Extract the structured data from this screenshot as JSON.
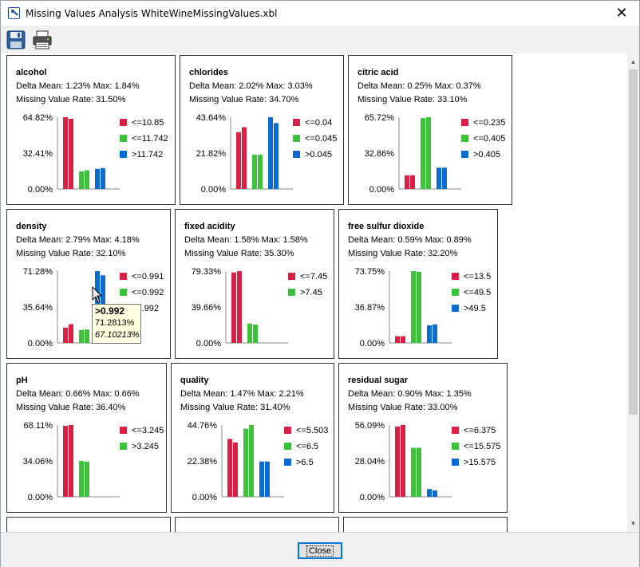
{
  "window": {
    "title": "Missing Values Analysis WhiteWineMissingValues.xbl",
    "close_glyph": "✕"
  },
  "toolbar": {
    "save_icon": "save-icon",
    "print_icon": "print-icon"
  },
  "footer": {
    "close_label": "Close"
  },
  "colors": {
    "red": "#d91f43",
    "green": "#3cc13b",
    "blue": "#0a6bd1"
  },
  "panels": [
    {
      "id": "alcohol",
      "name": "alcohol",
      "delta": "Delta Mean: 1.23% Max: 1.84%",
      "rate": "Missing Value Rate: 31.50%",
      "y_labels": [
        "64.82%",
        "32.41%",
        "0.00%"
      ],
      "y_max": 64.82,
      "legend": [
        {
          "label": "<=10.85",
          "color": "red"
        },
        {
          "label": "<=11.742",
          "color": "green"
        },
        {
          "label": ">11.742",
          "color": "blue"
        }
      ],
      "groups": [
        [
          64.82,
          63.4
        ],
        [
          16.0,
          16.9
        ],
        [
          18.2,
          18.9
        ]
      ]
    },
    {
      "id": "chlorides",
      "name": "chlorides",
      "delta": "Delta Mean: 2.02% Max: 3.03%",
      "rate": "Missing Value Rate: 34.70%",
      "y_labels": [
        "43.64%",
        "21.82%",
        "0.00%"
      ],
      "y_max": 43.64,
      "legend": [
        {
          "label": "<=0.04",
          "color": "red"
        },
        {
          "label": "<=0.045",
          "color": "green"
        },
        {
          "label": ">0.045",
          "color": "blue"
        }
      ],
      "groups": [
        [
          34.6,
          37.6
        ],
        [
          20.8,
          20.8
        ],
        [
          43.64,
          40.1
        ]
      ]
    },
    {
      "id": "citric-acid",
      "name": "citric acid",
      "delta": "Delta Mean: 0.25% Max: 0.37%",
      "rate": "Missing Value Rate: 33.10%",
      "y_labels": [
        "65.72%",
        "32.86%",
        "0.00%"
      ],
      "y_max": 65.72,
      "legend": [
        {
          "label": "<=0.235",
          "color": "red"
        },
        {
          "label": "<=0.405",
          "color": "green"
        },
        {
          "label": ">0.405",
          "color": "blue"
        }
      ],
      "groups": [
        [
          12.6,
          12.6
        ],
        [
          64.9,
          65.72
        ],
        [
          19.5,
          19.5
        ]
      ]
    },
    {
      "id": "density",
      "name": "density",
      "delta": "Delta Mean: 2.79% Max: 4.18%",
      "rate": "Missing Value Rate: 32.10%",
      "y_labels": [
        "71.28%",
        "35.64%",
        "0.00%"
      ],
      "y_max": 71.28,
      "legend": [
        {
          "label": "<=0.991",
          "color": "red"
        },
        {
          "label": "<=0.992",
          "color": "green"
        },
        {
          "label": ">0.992",
          "color": "blue"
        }
      ],
      "groups": [
        [
          15.2,
          18.6
        ],
        [
          12.9,
          13.3
        ],
        [
          71.28,
          67.1
        ]
      ]
    },
    {
      "id": "fixed-acidity",
      "name": "fixed acidity",
      "delta": "Delta Mean: 1.58% Max: 1.58%",
      "rate": "Missing Value Rate: 35.30%",
      "y_labels": [
        "79.33%",
        "39.66%",
        "0.00%"
      ],
      "y_max": 79.33,
      "legend": [
        {
          "label": "<=7.45",
          "color": "red"
        },
        {
          "label": ">7.45",
          "color": "green"
        }
      ],
      "groups": [
        [
          77.9,
          79.33
        ],
        [
          21.5,
          20.3
        ]
      ]
    },
    {
      "id": "free-sulfur-dioxide",
      "name": "free sulfur dioxide",
      "delta": "Delta Mean: 0.59% Max: 0.89%",
      "rate": "Missing Value Rate: 32.20%",
      "y_labels": [
        "73.75%",
        "36.87%",
        "0.00%"
      ],
      "y_max": 73.75,
      "legend": [
        {
          "label": "<=13.5",
          "color": "red"
        },
        {
          "label": "<=49.5",
          "color": "green"
        },
        {
          "label": ">49.5",
          "color": "blue"
        }
      ],
      "groups": [
        [
          6.9,
          6.9
        ],
        [
          73.75,
          72.9
        ],
        [
          18.1,
          19.0
        ]
      ]
    },
    {
      "id": "ph",
      "name": "pH",
      "delta": "Delta Mean: 0.66% Max: 0.66%",
      "rate": "Missing Value Rate: 36.40%",
      "y_labels": [
        "68.11%",
        "34.06%",
        "0.00%"
      ],
      "y_max": 68.11,
      "legend": [
        {
          "label": "<=3.245",
          "color": "red"
        },
        {
          "label": ">3.245",
          "color": "green"
        }
      ],
      "groups": [
        [
          67.4,
          68.11
        ],
        [
          34.0,
          33.3
        ]
      ]
    },
    {
      "id": "quality",
      "name": "quality",
      "delta": "Delta Mean: 1.47% Max: 2.21%",
      "rate": "Missing Value Rate: 31.40%",
      "y_labels": [
        "44.76%",
        "22.38%",
        "0.00%"
      ],
      "y_max": 44.76,
      "legend": [
        {
          "label": "<=5.503",
          "color": "red"
        },
        {
          "label": "<=6.5",
          "color": "green"
        },
        {
          "label": ">6.5",
          "color": "blue"
        }
      ],
      "groups": [
        [
          36.1,
          33.9
        ],
        [
          42.5,
          44.76
        ],
        [
          22.0,
          22.0
        ]
      ]
    },
    {
      "id": "residual-sugar",
      "name": "residual sugar",
      "delta": "Delta Mean: 0.90% Max: 1.35%",
      "rate": "Missing Value Rate: 33.00%",
      "y_labels": [
        "56.09%",
        "28.04%",
        "0.00%"
      ],
      "y_max": 56.09,
      "legend": [
        {
          "label": "<=6.375",
          "color": "red"
        },
        {
          "label": "<=15.575",
          "color": "green"
        },
        {
          "label": ">15.575",
          "color": "blue"
        }
      ],
      "groups": [
        [
          55.0,
          56.09
        ],
        [
          38.3,
          38.3
        ],
        [
          6.1,
          5.0
        ]
      ]
    }
  ],
  "tooltip": {
    "label": ">0.992",
    "count": "71.2813%",
    "percent": "67.10213%"
  },
  "scrollbar": {
    "up_glyph": "▲",
    "down_glyph": "▼"
  }
}
